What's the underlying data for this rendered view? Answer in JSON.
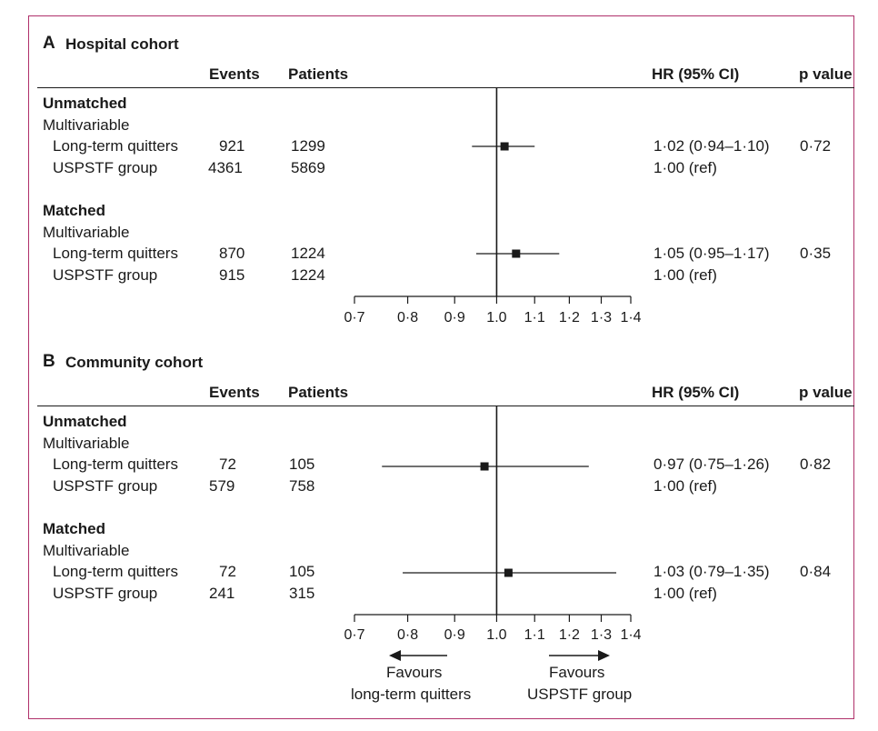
{
  "chart_data": [
    {
      "type": "forest",
      "panel_letter": "A",
      "title": "Hospital cohort",
      "columns": {
        "events": "Events",
        "patients": "Patients",
        "hr": "HR (95% CI)",
        "p": "p value"
      },
      "x_scale": "log",
      "xlim": [
        0.7,
        1.4
      ],
      "ticks": [
        "0·7",
        "0·8",
        "0·9",
        "1.0",
        "1·1",
        "1·2",
        "1·3",
        "1·4"
      ],
      "tick_values": [
        0.7,
        0.8,
        0.9,
        1.0,
        1.1,
        1.2,
        1.3,
        1.4
      ],
      "reference_line": 1.0,
      "groups": [
        {
          "name": "Unmatched",
          "model": "Multivariable",
          "rows": [
            {
              "label": "Long-term quitters",
              "events": "921",
              "patients": "1299",
              "hr_text": "1·02 (0·94–1·10)",
              "p": "0·72",
              "hr": 1.02,
              "lo": 0.94,
              "hi": 1.1
            },
            {
              "label": "USPSTF group",
              "events": "4361",
              "patients": "5869",
              "hr_text": "1·00 (ref)",
              "p": ""
            }
          ]
        },
        {
          "name": "Matched",
          "model": "Multivariable",
          "rows": [
            {
              "label": "Long-term quitters",
              "events": "870",
              "patients": "1224",
              "hr_text": "1·05 (0·95–1·17)",
              "p": "0·35",
              "hr": 1.05,
              "lo": 0.95,
              "hi": 1.17
            },
            {
              "label": "USPSTF group",
              "events": "915",
              "patients": "1224",
              "hr_text": "1·00 (ref)",
              "p": ""
            }
          ]
        }
      ]
    },
    {
      "type": "forest",
      "panel_letter": "B",
      "title": "Community cohort",
      "columns": {
        "events": "Events",
        "patients": "Patients",
        "hr": "HR (95% CI)",
        "p": "p value"
      },
      "x_scale": "log",
      "xlim": [
        0.7,
        1.4
      ],
      "ticks": [
        "0·7",
        "0·8",
        "0·9",
        "1.0",
        "1·1",
        "1·2",
        "1·3",
        "1·4"
      ],
      "tick_values": [
        0.7,
        0.8,
        0.9,
        1.0,
        1.1,
        1.2,
        1.3,
        1.4
      ],
      "reference_line": 1.0,
      "groups": [
        {
          "name": "Unmatched",
          "model": "Multivariable",
          "rows": [
            {
              "label": "Long-term quitters",
              "events": "72",
              "patients": "105",
              "hr_text": "0·97 (0·75–1·26)",
              "p": "0·82",
              "hr": 0.97,
              "lo": 0.75,
              "hi": 1.26
            },
            {
              "label": "USPSTF group",
              "events": "579",
              "patients": "758",
              "hr_text": "1·00 (ref)",
              "p": ""
            }
          ]
        },
        {
          "name": "Matched",
          "model": "Multivariable",
          "rows": [
            {
              "label": "Long-term quitters",
              "events": "72",
              "patients": "105",
              "hr_text": "1·03 (0·79–1·35)",
              "p": "0·84",
              "hr": 1.03,
              "lo": 0.79,
              "hi": 1.35
            },
            {
              "label": "USPSTF group",
              "events": "241",
              "patients": "315",
              "hr_text": "1·00 (ref)",
              "p": ""
            }
          ]
        }
      ],
      "annotations": {
        "left_line1": "Favours",
        "left_line2": "long-term quitters",
        "right_line1": "Favours",
        "right_line2": "USPSTF group"
      }
    }
  ]
}
